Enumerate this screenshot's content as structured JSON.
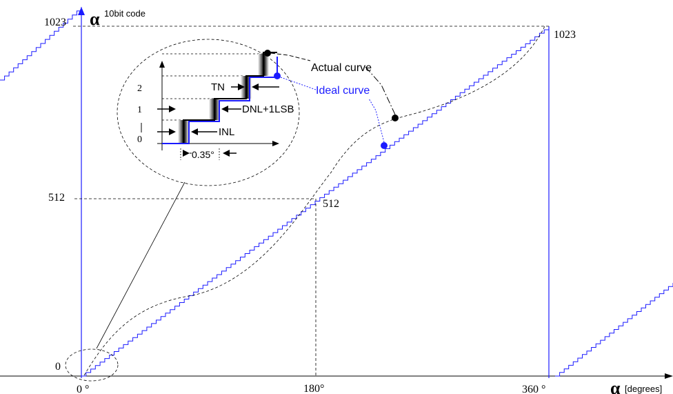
{
  "y_axis": {
    "symbol": "α",
    "unit": "10bit code",
    "tick_labels": [
      "1023",
      "512",
      "0"
    ]
  },
  "x_axis": {
    "symbol": "α",
    "unit": "[degrees]",
    "tick_labels": [
      "0 °",
      "180°",
      "360 °"
    ]
  },
  "point_labels": {
    "top_right": "1023",
    "center": "512"
  },
  "legend": {
    "actual": "Actual curve",
    "ideal": "Ideal curve"
  },
  "inset": {
    "y_ticks": [
      "2",
      "1",
      "0"
    ],
    "labels": {
      "tn": "TN",
      "dnl": "DNL+1LSB",
      "inl": "INL",
      "step": "0.35°"
    }
  },
  "colors": {
    "ideal": "#1a1aff",
    "axis": "#000000",
    "actual": "#000000"
  }
}
